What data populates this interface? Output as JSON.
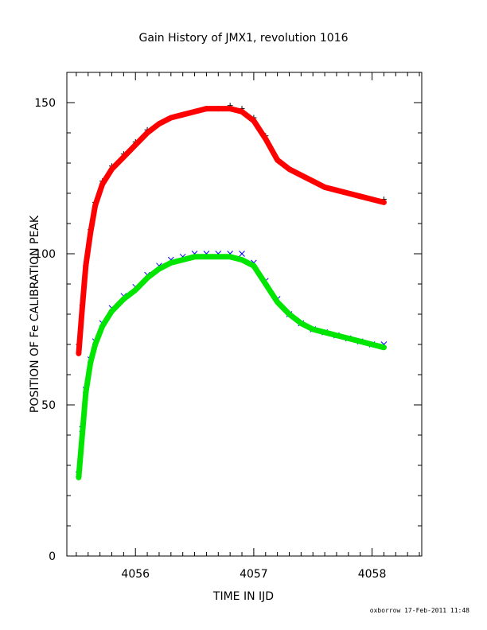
{
  "chart_data": {
    "type": "scatter",
    "title": "Gain History of JMX1, revolution 1016",
    "xlabel": "TIME IN IJD",
    "ylabel": "POSITION OF Fe CALIBRATION PEAK",
    "xlim": [
      4055.42,
      4058.42
    ],
    "ylim": [
      0,
      160
    ],
    "xticks": [
      4056,
      4057,
      4058
    ],
    "xtick_labels": [
      "4056",
      "4057",
      "4058"
    ],
    "yticks": [
      0,
      50,
      100,
      150
    ],
    "ytick_labels": [
      "0",
      "50",
      "100",
      "150"
    ],
    "grid": false,
    "footer": "oxborrow 17-Feb-2011 11:48",
    "series": [
      {
        "role": "upper-data",
        "marker": "+",
        "color": "#000000",
        "x": [
          4055.52,
          4055.55,
          4055.58,
          4055.62,
          4055.66,
          4055.72,
          4055.8,
          4055.9,
          4056.0,
          4056.1,
          4056.2,
          4056.3,
          4056.4,
          4056.5,
          4056.6,
          4056.7,
          4056.8,
          4056.9,
          4057.0,
          4057.1,
          4057.2,
          4057.3,
          4057.4,
          4057.5,
          4057.6,
          4057.7,
          4057.8,
          4057.9,
          4058.0,
          4058.1
        ],
        "y": [
          70,
          83,
          96,
          108,
          117,
          124,
          129,
          133,
          137,
          141,
          143,
          145,
          146,
          147,
          148,
          148,
          149,
          148,
          145,
          139,
          131,
          128,
          126,
          124,
          122,
          121,
          120,
          119,
          118,
          118
        ]
      },
      {
        "role": "upper-fit",
        "line": true,
        "color": "#ff0000",
        "x": [
          4055.52,
          4055.55,
          4055.58,
          4055.62,
          4055.66,
          4055.72,
          4055.8,
          4055.9,
          4056.0,
          4056.1,
          4056.2,
          4056.3,
          4056.4,
          4056.5,
          4056.6,
          4056.7,
          4056.8,
          4056.9,
          4057.0,
          4057.1,
          4057.2,
          4057.3,
          4057.4,
          4057.5,
          4057.6,
          4057.7,
          4057.8,
          4057.9,
          4058.0,
          4058.1
        ],
        "y": [
          67,
          82,
          96,
          107,
          116,
          123,
          128,
          132,
          136,
          140,
          143,
          145,
          146,
          147,
          148,
          148,
          148,
          147,
          144,
          138,
          131,
          128,
          126,
          124,
          122,
          121,
          120,
          119,
          118,
          117
        ]
      },
      {
        "role": "lower-data",
        "marker": "x",
        "color": "#0000ff",
        "x": [
          4055.52,
          4055.55,
          4055.58,
          4055.62,
          4055.66,
          4055.72,
          4055.8,
          4055.9,
          4056.0,
          4056.1,
          4056.2,
          4056.3,
          4056.4,
          4056.5,
          4056.6,
          4056.7,
          4056.8,
          4056.9,
          4057.0,
          4057.1,
          4057.2,
          4057.3,
          4057.4,
          4057.5,
          4057.6,
          4057.7,
          4057.8,
          4057.9,
          4058.0,
          4058.1
        ],
        "y": [
          27,
          42,
          55,
          65,
          71,
          77,
          82,
          86,
          89,
          93,
          96,
          98,
          99,
          100,
          100,
          100,
          100,
          100,
          97,
          91,
          85,
          80,
          77,
          75,
          74,
          73,
          72,
          71,
          70,
          70
        ]
      },
      {
        "role": "lower-fit",
        "line": true,
        "color": "#00e600",
        "x": [
          4055.52,
          4055.55,
          4055.58,
          4055.62,
          4055.66,
          4055.72,
          4055.8,
          4055.9,
          4056.0,
          4056.1,
          4056.2,
          4056.3,
          4056.4,
          4056.5,
          4056.6,
          4056.7,
          4056.8,
          4056.9,
          4057.0,
          4057.1,
          4057.2,
          4057.3,
          4057.4,
          4057.5,
          4057.6,
          4057.7,
          4057.8,
          4057.9,
          4058.0,
          4058.1
        ],
        "y": [
          26,
          40,
          54,
          64,
          70,
          76,
          81,
          85,
          88,
          92,
          95,
          97,
          98,
          99,
          99,
          99,
          99,
          98,
          96,
          90,
          84,
          80,
          77,
          75,
          74,
          73,
          72,
          71,
          70,
          69
        ]
      }
    ]
  }
}
